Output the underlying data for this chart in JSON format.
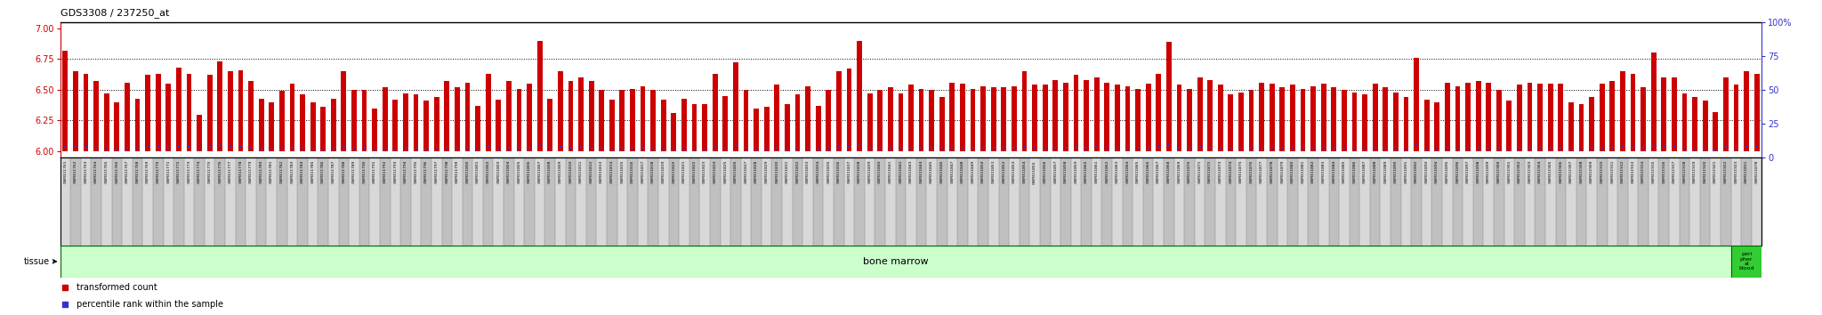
{
  "title": "GDS3308 / 237250_at",
  "ylim_left": [
    5.95,
    7.05
  ],
  "ylim_right": [
    0,
    100
  ],
  "yticks_left": [
    6.0,
    6.25,
    6.5,
    6.75,
    7.0
  ],
  "yticks_right": [
    0,
    25,
    50,
    75,
    100
  ],
  "baseline": 6.0,
  "bar_color": "#CC0000",
  "dot_color": "#3333CC",
  "bg_color": "#FFFFFF",
  "sample_labels": [
    "GSM311761",
    "GSM311762",
    "GSM311763",
    "GSM311764",
    "GSM311765",
    "GSM311766",
    "GSM311767",
    "GSM311768",
    "GSM311769",
    "GSM311770",
    "GSM311771",
    "GSM311772",
    "GSM311773",
    "GSM311774",
    "GSM311775",
    "GSM311776",
    "GSM311777",
    "GSM311778",
    "GSM311779",
    "GSM311780",
    "GSM311781",
    "GSM311782",
    "GSM311783",
    "GSM311784",
    "GSM311785",
    "GSM311786",
    "GSM311787",
    "GSM311788",
    "GSM311789",
    "GSM311790",
    "GSM311791",
    "GSM311792",
    "GSM311793",
    "GSM311794",
    "GSM311795",
    "GSM311796",
    "GSM311797",
    "GSM311798",
    "GSM311799",
    "GSM311800",
    "GSM311801",
    "GSM311802",
    "GSM311803",
    "GSM311804",
    "GSM311805",
    "GSM311806",
    "GSM311807",
    "GSM311808",
    "GSM311809",
    "GSM311810",
    "GSM311811",
    "GSM311812",
    "GSM311813",
    "GSM311814",
    "GSM311815",
    "GSM311816",
    "GSM311817",
    "GSM311818",
    "GSM311819",
    "GSM311820",
    "GSM311821",
    "GSM311822",
    "GSM311823",
    "GSM311824",
    "GSM311825",
    "GSM311826",
    "GSM311827",
    "GSM311828",
    "GSM311829",
    "GSM311830",
    "GSM311831",
    "GSM311832",
    "GSM311833",
    "GSM311834",
    "GSM311835",
    "GSM311836",
    "GSM311837",
    "GSM311838",
    "GSM311839",
    "GSM311840",
    "GSM311841",
    "GSM311842",
    "GSM311843",
    "GSM311844",
    "GSM311845",
    "GSM311846",
    "GSM311847",
    "GSM311848",
    "GSM311849",
    "GSM311850",
    "GSM311851",
    "GSM311852",
    "GSM311853",
    "GSM311854",
    "GSM311855",
    "GSM311856",
    "GSM311857",
    "GSM311858",
    "GSM311859",
    "GSM311860",
    "GSM311861",
    "GSM311862",
    "GSM311863",
    "GSM311864",
    "GSM311865",
    "GSM311866",
    "GSM311867",
    "GSM311868",
    "GSM311869",
    "GSM311870",
    "GSM311871",
    "GSM311872",
    "GSM311873",
    "GSM311874",
    "GSM311875",
    "GSM311876",
    "GSM311877",
    "GSM311878",
    "GSM311879",
    "GSM311880",
    "GSM311881",
    "GSM311882",
    "GSM311883",
    "GSM311884",
    "GSM311885",
    "GSM311886",
    "GSM311887",
    "GSM311888",
    "GSM311889",
    "GSM311890",
    "GSM311891",
    "GSM311892",
    "GSM311893",
    "GSM311894",
    "GSM311895",
    "GSM311896",
    "GSM311897",
    "GSM311898",
    "GSM311899",
    "GSM311900",
    "GSM311901",
    "GSM311902",
    "GSM311903",
    "GSM311904",
    "GSM311905",
    "GSM311906",
    "GSM311907",
    "GSM311908",
    "GSM311909",
    "GSM311910",
    "GSM311911",
    "GSM311912",
    "GSM311913",
    "GSM311914",
    "GSM311915",
    "GSM311916",
    "GSM311917",
    "GSM311918",
    "GSM311919",
    "GSM311920",
    "GSM311921",
    "GSM311922",
    "GSM311923",
    "GSM311831",
    "GSM311878"
  ],
  "bar_heights": [
    6.82,
    6.65,
    6.63,
    6.57,
    6.47,
    6.4,
    6.56,
    6.43,
    6.62,
    6.63,
    6.55,
    6.68,
    6.63,
    6.3,
    6.62,
    6.73,
    6.65,
    6.66,
    6.57,
    6.43,
    6.4,
    6.49,
    6.55,
    6.46,
    6.4,
    6.36,
    6.43,
    6.65,
    6.5,
    6.5,
    6.35,
    6.52,
    6.42,
    6.47,
    6.46,
    6.41,
    6.44,
    6.57,
    6.52,
    6.56,
    6.37,
    6.63,
    6.42,
    6.57,
    6.51,
    6.55,
    6.9,
    6.43,
    6.65,
    6.57,
    6.6,
    6.57,
    6.5,
    6.42,
    6.5,
    6.51,
    6.53,
    6.5,
    6.42,
    6.31,
    6.43,
    6.38,
    6.38,
    6.63,
    6.45,
    6.72,
    6.5,
    6.35,
    6.36,
    6.54,
    6.38,
    6.46,
    6.53,
    6.37,
    6.5,
    6.65,
    6.67,
    6.9,
    6.47,
    6.5,
    6.52,
    6.47,
    6.54,
    6.51,
    6.5,
    6.44,
    6.56,
    6.55,
    6.51,
    6.53,
    6.52,
    6.52,
    6.53,
    6.65,
    6.54,
    6.54,
    6.58,
    6.56,
    6.62,
    6.58,
    6.6,
    6.56,
    6.54,
    6.53,
    6.51,
    6.55,
    6.63,
    6.89,
    6.54,
    6.51,
    6.6,
    6.58,
    6.54,
    6.46,
    6.48,
    6.5,
    6.56,
    6.55,
    6.52,
    6.54,
    6.51,
    6.53,
    6.55,
    6.52,
    6.5,
    6.48,
    6.46,
    6.55,
    6.52,
    6.48,
    6.44,
    6.76,
    6.42,
    6.4,
    6.56,
    6.53,
    6.56,
    6.57,
    6.56,
    6.5,
    6.41,
    6.54,
    6.56,
    6.55,
    6.55,
    6.55,
    6.4,
    6.38,
    6.44,
    6.55,
    6.57,
    6.65,
    6.63,
    6.52,
    6.8,
    6.6,
    6.6,
    6.47,
    6.44,
    6.41,
    6.32,
    6.6,
    6.54,
    6.65,
    6.63
  ],
  "percentile_ranks": [
    8,
    8,
    8,
    7,
    7,
    6,
    7,
    7,
    8,
    8,
    7,
    8,
    8,
    6,
    8,
    9,
    8,
    8,
    7,
    7,
    6,
    7,
    7,
    7,
    6,
    6,
    7,
    8,
    7,
    7,
    6,
    7,
    6,
    7,
    7,
    6,
    7,
    7,
    7,
    7,
    6,
    8,
    6,
    7,
    7,
    7,
    9,
    7,
    8,
    7,
    8,
    7,
    7,
    6,
    7,
    7,
    7,
    7,
    6,
    6,
    7,
    6,
    6,
    8,
    7,
    9,
    7,
    6,
    6,
    7,
    6,
    7,
    7,
    6,
    7,
    8,
    8,
    9,
    7,
    7,
    7,
    7,
    7,
    7,
    7,
    7,
    7,
    7,
    7,
    7,
    7,
    7,
    7,
    8,
    7,
    7,
    7,
    7,
    8,
    7,
    8,
    7,
    7,
    7,
    7,
    7,
    8,
    9,
    7,
    7,
    8,
    7,
    7,
    7,
    7,
    7,
    7,
    7,
    7,
    7,
    7,
    7,
    7,
    7,
    7,
    7,
    7,
    7,
    7,
    7,
    6,
    9,
    6,
    6,
    7,
    7,
    7,
    7,
    7,
    7,
    6,
    7,
    7,
    7,
    7,
    7,
    6,
    6,
    7,
    7,
    7,
    8,
    8,
    7,
    9,
    8,
    8,
    7,
    6,
    6,
    5,
    8,
    7,
    8,
    8
  ],
  "bm_count": 162,
  "tissue_bm_color": "#CCFFCC",
  "tissue_pb_color": "#33CC33",
  "tissue_border": "#006600",
  "tissue_label_color": "#000000",
  "left_axis_color": "#CC0000",
  "right_axis_color": "#3333CC",
  "grid_linestyle": ":",
  "grid_color": "#000000",
  "grid_linewidth": 0.7,
  "ytick_grid_vals": [
    6.25,
    6.5,
    6.75
  ],
  "title_fontsize": 8,
  "axis_tick_fontsize": 7,
  "label_fontsize": 3.2,
  "legend_fontsize": 7,
  "tissue_fontsize": 8,
  "bar_width": 0.5
}
